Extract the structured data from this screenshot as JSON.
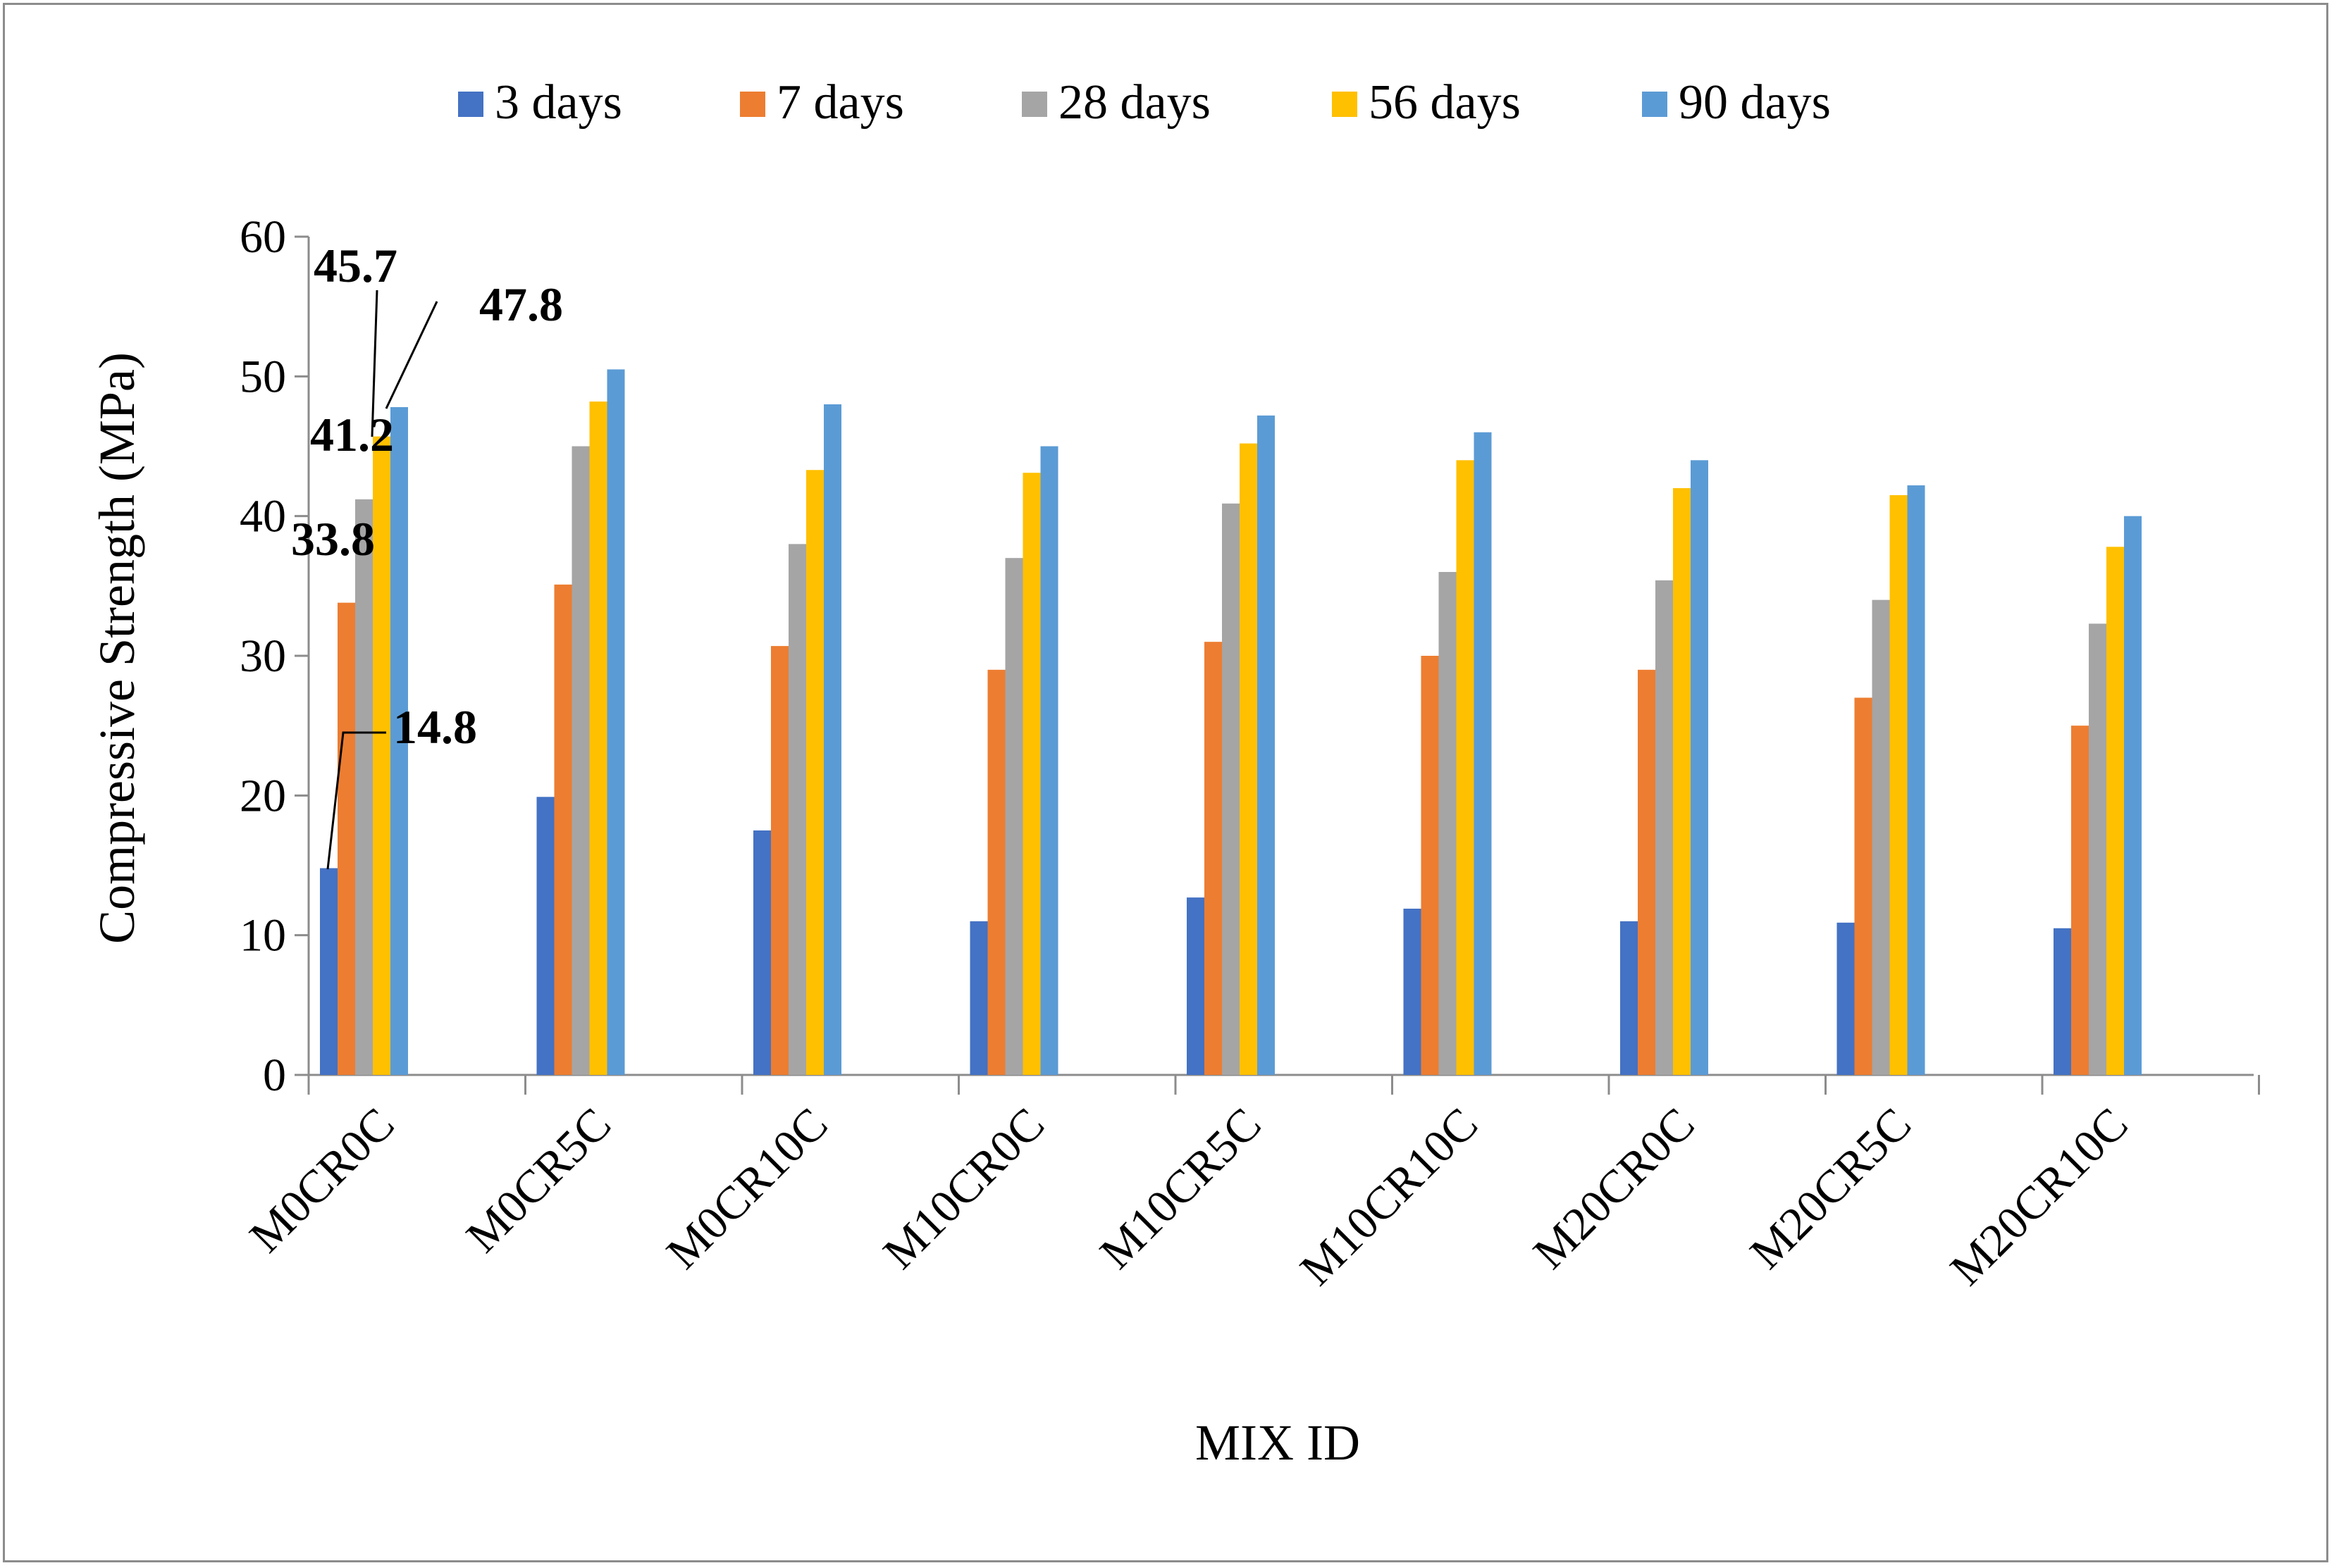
{
  "chart_data": {
    "type": "bar",
    "title": "",
    "xlabel": "MIX ID",
    "ylabel": "Compressive Strength (MPa)",
    "ylim": [
      0,
      60
    ],
    "yticks": [
      0,
      10,
      20,
      30,
      40,
      50,
      60
    ],
    "ytick_labels": [
      "0",
      "10",
      "20",
      "30",
      "40",
      "50",
      "60"
    ],
    "grid": false,
    "legend_position": "top",
    "categories": [
      "M0CR0C",
      "M0CR5C",
      "M0CR10C",
      "M10CR0C",
      "M10CR5C",
      "M10CR10C",
      "M20CR0C",
      "M20CR5C",
      "M20CR10C"
    ],
    "series": [
      {
        "name": "3 days",
        "color": "#4472C4",
        "values": [
          14.8,
          19.9,
          17.5,
          11.0,
          12.7,
          11.9,
          11.0,
          10.9,
          10.5
        ]
      },
      {
        "name": "7 days",
        "color": "#ED7D31",
        "values": [
          33.8,
          35.1,
          30.7,
          29.0,
          31.0,
          30.0,
          29.0,
          27.0,
          25.0
        ]
      },
      {
        "name": "28 days",
        "color": "#A5A5A5",
        "values": [
          41.2,
          45.0,
          38.0,
          37.0,
          40.9,
          36.0,
          35.4,
          34.0,
          32.3
        ]
      },
      {
        "name": "56 days",
        "color": "#FFC000",
        "values": [
          45.7,
          48.2,
          43.3,
          43.1,
          45.2,
          44.0,
          42.0,
          41.5,
          37.8
        ]
      },
      {
        "name": "90 days",
        "color": "#5B9BD5",
        "values": [
          47.8,
          50.5,
          48.0,
          45.0,
          47.2,
          46.0,
          44.0,
          42.2,
          40.0
        ]
      }
    ],
    "data_labels": [
      {
        "text": "14.8",
        "series": 0,
        "category": 0
      },
      {
        "text": "33.8",
        "series": 1,
        "category": 0
      },
      {
        "text": "41.2",
        "series": 2,
        "category": 0
      },
      {
        "text": "45.7",
        "series": 3,
        "category": 0
      },
      {
        "text": "47.8",
        "series": 4,
        "category": 0
      }
    ]
  },
  "colors": {
    "axis": "#8c8c8c",
    "frame": "#8c8c8c",
    "leader": "#000000"
  }
}
